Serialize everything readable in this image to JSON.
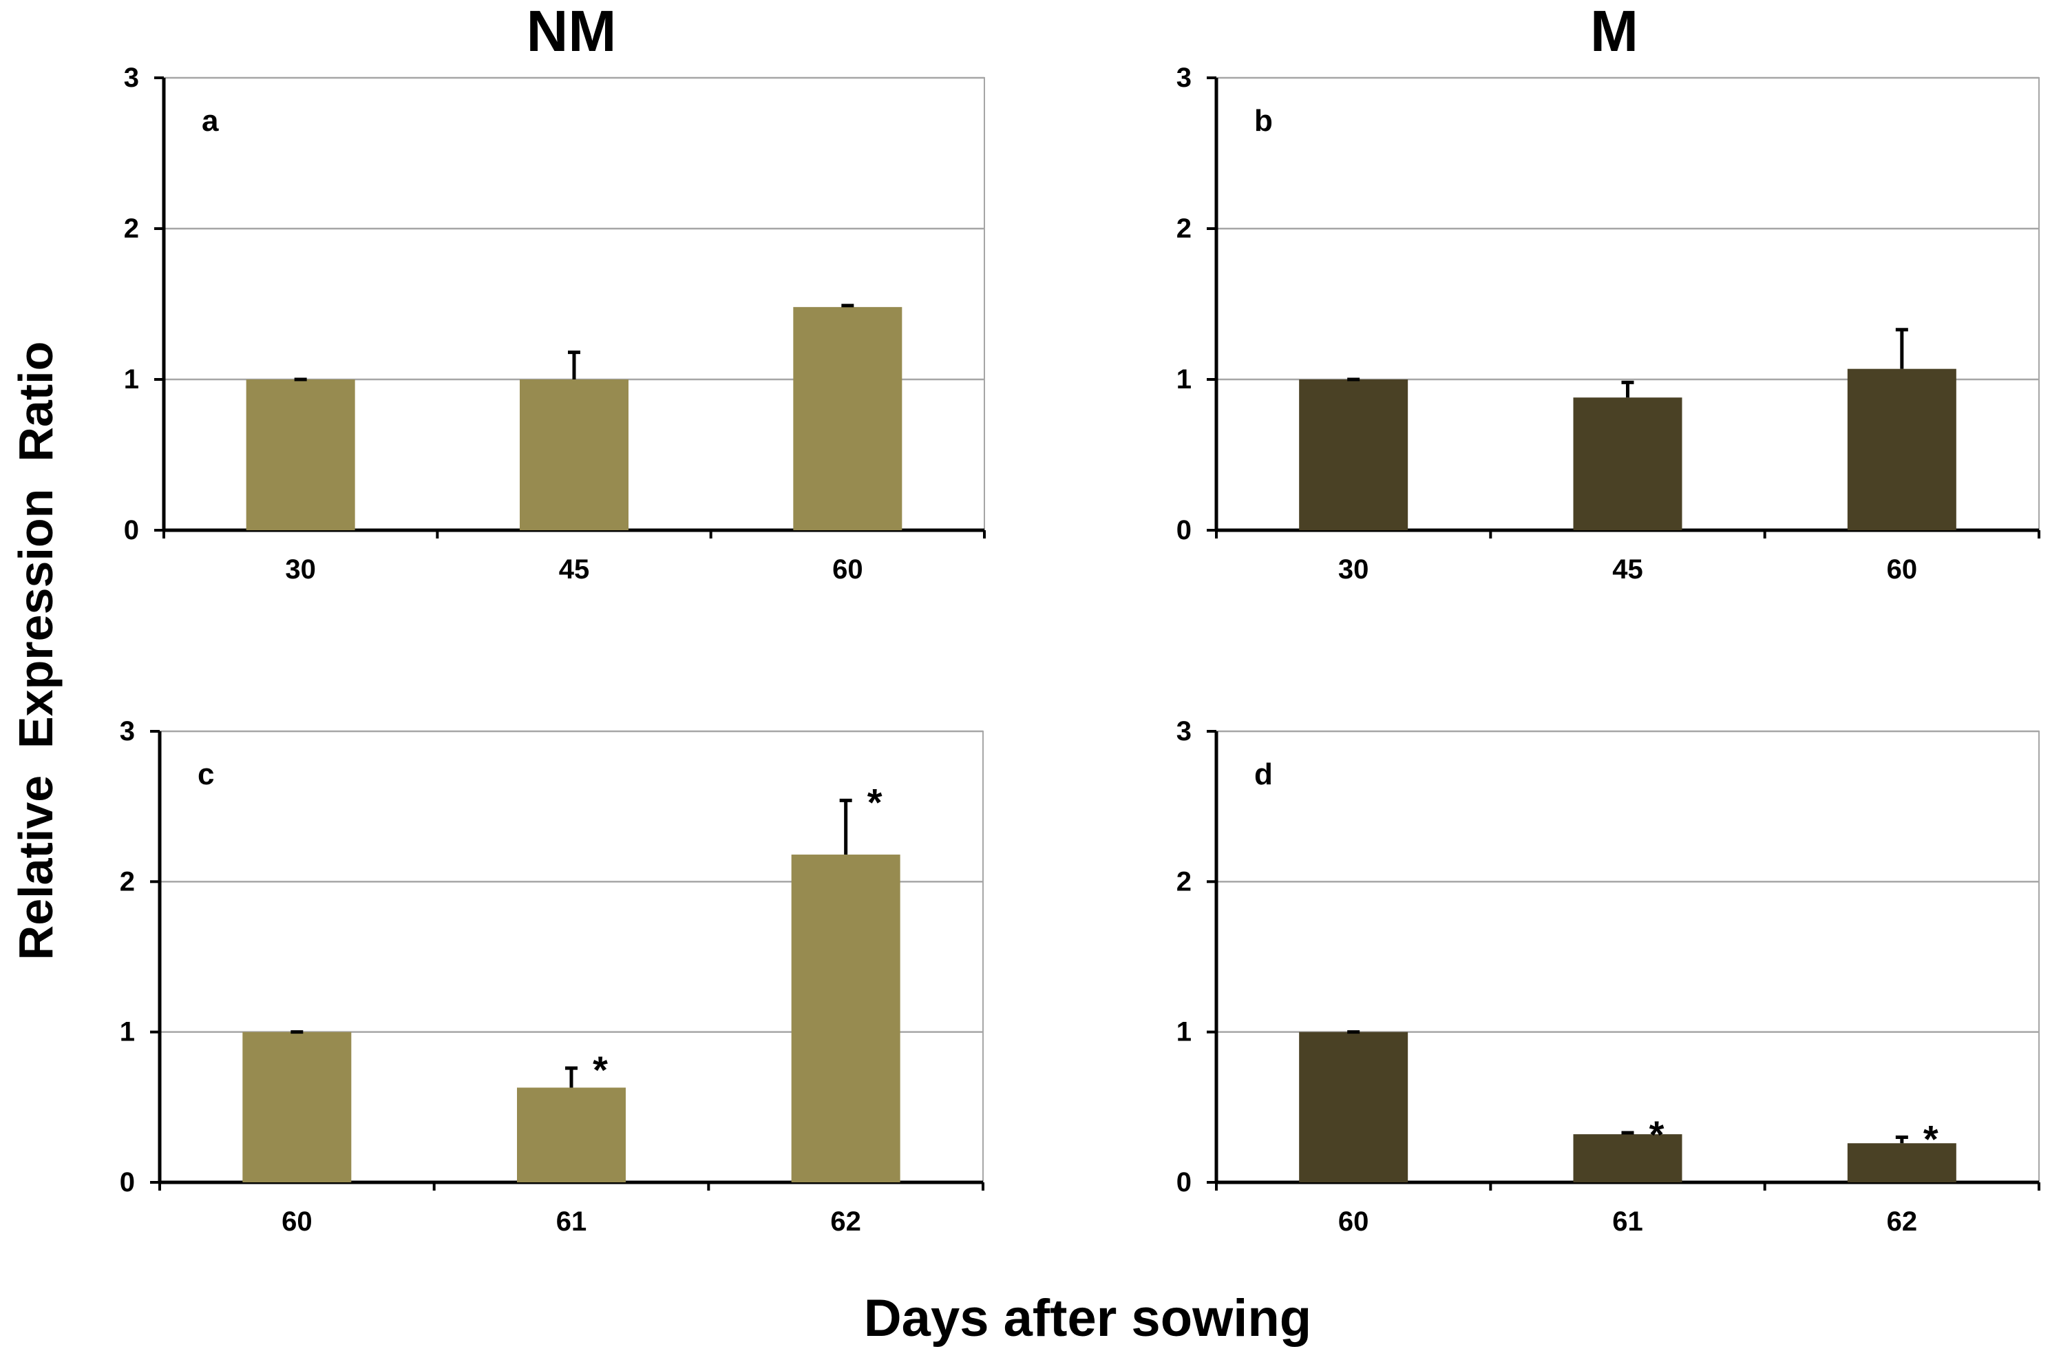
{
  "figure": {
    "column_titles": {
      "left": "NM",
      "right": "M"
    },
    "y_axis_title": "Relative  Expression  Ratio",
    "x_axis_title": "Days after sowing",
    "colors": {
      "NM": "#978b50",
      "M": "#4a4125",
      "grid": "#a6a6a6",
      "axis": "#000000"
    }
  },
  "chart_data": [
    {
      "type": "bar",
      "panel": "a",
      "group": "NM",
      "categories": [
        "30",
        "45",
        "60"
      ],
      "values": [
        1.0,
        1.0,
        1.48
      ],
      "error_plus": [
        0.0,
        0.18,
        0.01
      ],
      "significant": [
        false,
        false,
        false
      ],
      "ylim": [
        0,
        3
      ],
      "yticks": [
        "0",
        "1",
        "2",
        "3"
      ],
      "grid": true,
      "color": "#978b50"
    },
    {
      "type": "bar",
      "panel": "b",
      "group": "M",
      "categories": [
        "30",
        "45",
        "60"
      ],
      "values": [
        1.0,
        0.88,
        1.07
      ],
      "error_plus": [
        0.0,
        0.1,
        0.26
      ],
      "significant": [
        false,
        false,
        false
      ],
      "ylim": [
        0,
        3
      ],
      "yticks": [
        "0",
        "1",
        "2",
        "3"
      ],
      "grid": true,
      "color": "#4a4125"
    },
    {
      "type": "bar",
      "panel": "c",
      "group": "NM",
      "categories": [
        "60",
        "61",
        "62"
      ],
      "values": [
        1.0,
        0.63,
        2.18
      ],
      "error_plus": [
        0.0,
        0.13,
        0.36
      ],
      "significant": [
        false,
        true,
        true
      ],
      "ylim": [
        0,
        3
      ],
      "yticks": [
        "0",
        "1",
        "2",
        "3"
      ],
      "grid": true,
      "color": "#978b50"
    },
    {
      "type": "bar",
      "panel": "d",
      "group": "M",
      "categories": [
        "60",
        "61",
        "62"
      ],
      "values": [
        1.0,
        0.32,
        0.26
      ],
      "error_plus": [
        0.0,
        0.01,
        0.04
      ],
      "significant": [
        false,
        true,
        true
      ],
      "ylim": [
        0,
        3
      ],
      "yticks": [
        "0",
        "1",
        "2",
        "3"
      ],
      "grid": true,
      "color": "#4a4125"
    }
  ],
  "significance_marker": "*"
}
